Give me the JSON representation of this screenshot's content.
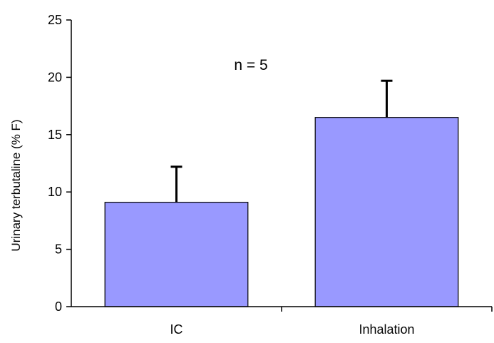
{
  "chart_data": {
    "type": "bar",
    "categories": [
      "IC",
      "Inhalation"
    ],
    "values": [
      9.1,
      16.5
    ],
    "error_bars": [
      3.1,
      3.2
    ],
    "ylabel": "Urinary terbutaline (% F)",
    "xlabel": "",
    "ylim": [
      0,
      25
    ],
    "yticks": [
      0,
      5,
      10,
      15,
      20,
      25
    ],
    "annotation": "n = 5",
    "grid": false,
    "bar_color": "#9999ff"
  }
}
